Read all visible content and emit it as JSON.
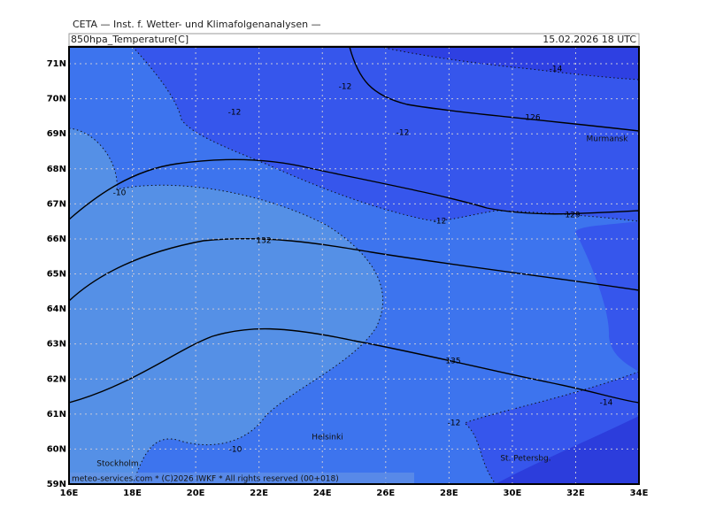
{
  "header": {
    "title": "CETA — Inst. f. Wetter- und Klimafolgenanalysen —",
    "field": "850hpa_Temperature[C]",
    "valid_time": "15.02.2026 18 UTC"
  },
  "map": {
    "lat_labels": [
      {
        "value": 59,
        "label": "59N"
      },
      {
        "value": 60,
        "label": "60N"
      },
      {
        "value": 61,
        "label": "61N"
      },
      {
        "value": 62,
        "label": "62N"
      },
      {
        "value": 63,
        "label": "63N"
      },
      {
        "value": 64,
        "label": "64N"
      },
      {
        "value": 65,
        "label": "65N"
      },
      {
        "value": 66,
        "label": "66N"
      },
      {
        "value": 67,
        "label": "67N"
      },
      {
        "value": 68,
        "label": "68N"
      },
      {
        "value": 69,
        "label": "69N"
      },
      {
        "value": 70,
        "label": "70N"
      },
      {
        "value": 71,
        "label": "71N"
      }
    ],
    "lon_labels": [
      {
        "value": 16,
        "label": "16E"
      },
      {
        "value": 18,
        "label": "18E"
      },
      {
        "value": 20,
        "label": "20E"
      },
      {
        "value": 22,
        "label": "22E"
      },
      {
        "value": 24,
        "label": "24E"
      },
      {
        "value": 26,
        "label": "26E"
      },
      {
        "value": 28,
        "label": "28E"
      },
      {
        "value": 30,
        "label": "30E"
      },
      {
        "value": 32,
        "label": "32E"
      },
      {
        "value": 34,
        "label": "34E"
      }
    ],
    "contour_labels": [
      -12,
      -12,
      -12,
      -12,
      -12,
      -14,
      -14,
      -10,
      -10,
      126,
      129,
      132,
      135
    ],
    "place_labels": [
      "Murmansk",
      "Helsinki",
      "Stockholm",
      "St. Petersbg."
    ],
    "footer": "meteo-services.com * (C)2026 IWKF * All rights reserved (00+018)"
  }
}
